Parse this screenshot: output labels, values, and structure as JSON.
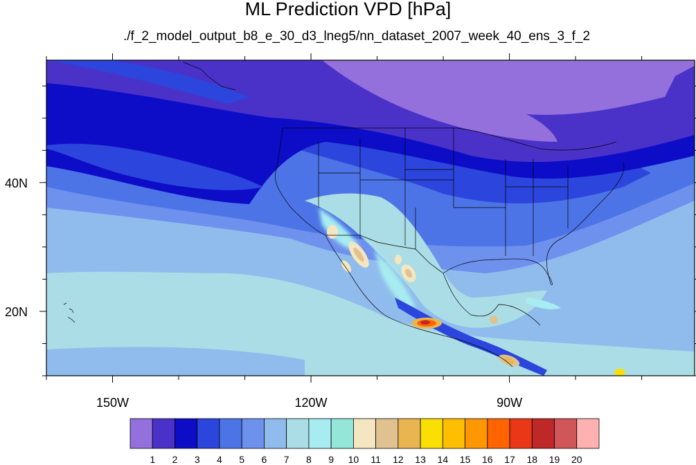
{
  "title": "ML Prediction VPD [hPa]",
  "subtitle": "./f_2_model_output_b8_e_30_d3_lneg5/nn_dataset_2007_week_40_ens_3_f_2",
  "map": {
    "lon_range": [
      -160,
      -62
    ],
    "lat_range": [
      10,
      59
    ],
    "lon_ticks": [
      {
        "lon": -150,
        "label": "150W"
      },
      {
        "lon": -120,
        "label": "120W"
      },
      {
        "lon": -90,
        "label": "90W"
      }
    ],
    "lat_ticks": [
      {
        "lat": 40,
        "label": "40N"
      },
      {
        "lat": 20,
        "label": "20N"
      }
    ]
  },
  "colorbar": {
    "colors": [
      "#9370db",
      "#4a32c8",
      "#0d0dc8",
      "#2c45dc",
      "#4c74e6",
      "#6e91ee",
      "#90bced",
      "#abdde6",
      "#a7ecf0",
      "#93e6d8",
      "#f4e6c0",
      "#e0c291",
      "#e8b550",
      "#fadf02",
      "#ffbe00",
      "#ff9800",
      "#ff6400",
      "#ea3718",
      "#be2828",
      "#d05659",
      "#ffb0b0"
    ],
    "labels": [
      "1",
      "2",
      "3",
      "4",
      "5",
      "6",
      "7",
      "8",
      "9",
      "10",
      "11",
      "12",
      "13",
      "14",
      "15",
      "16",
      "17",
      "18",
      "19",
      "20"
    ]
  }
}
